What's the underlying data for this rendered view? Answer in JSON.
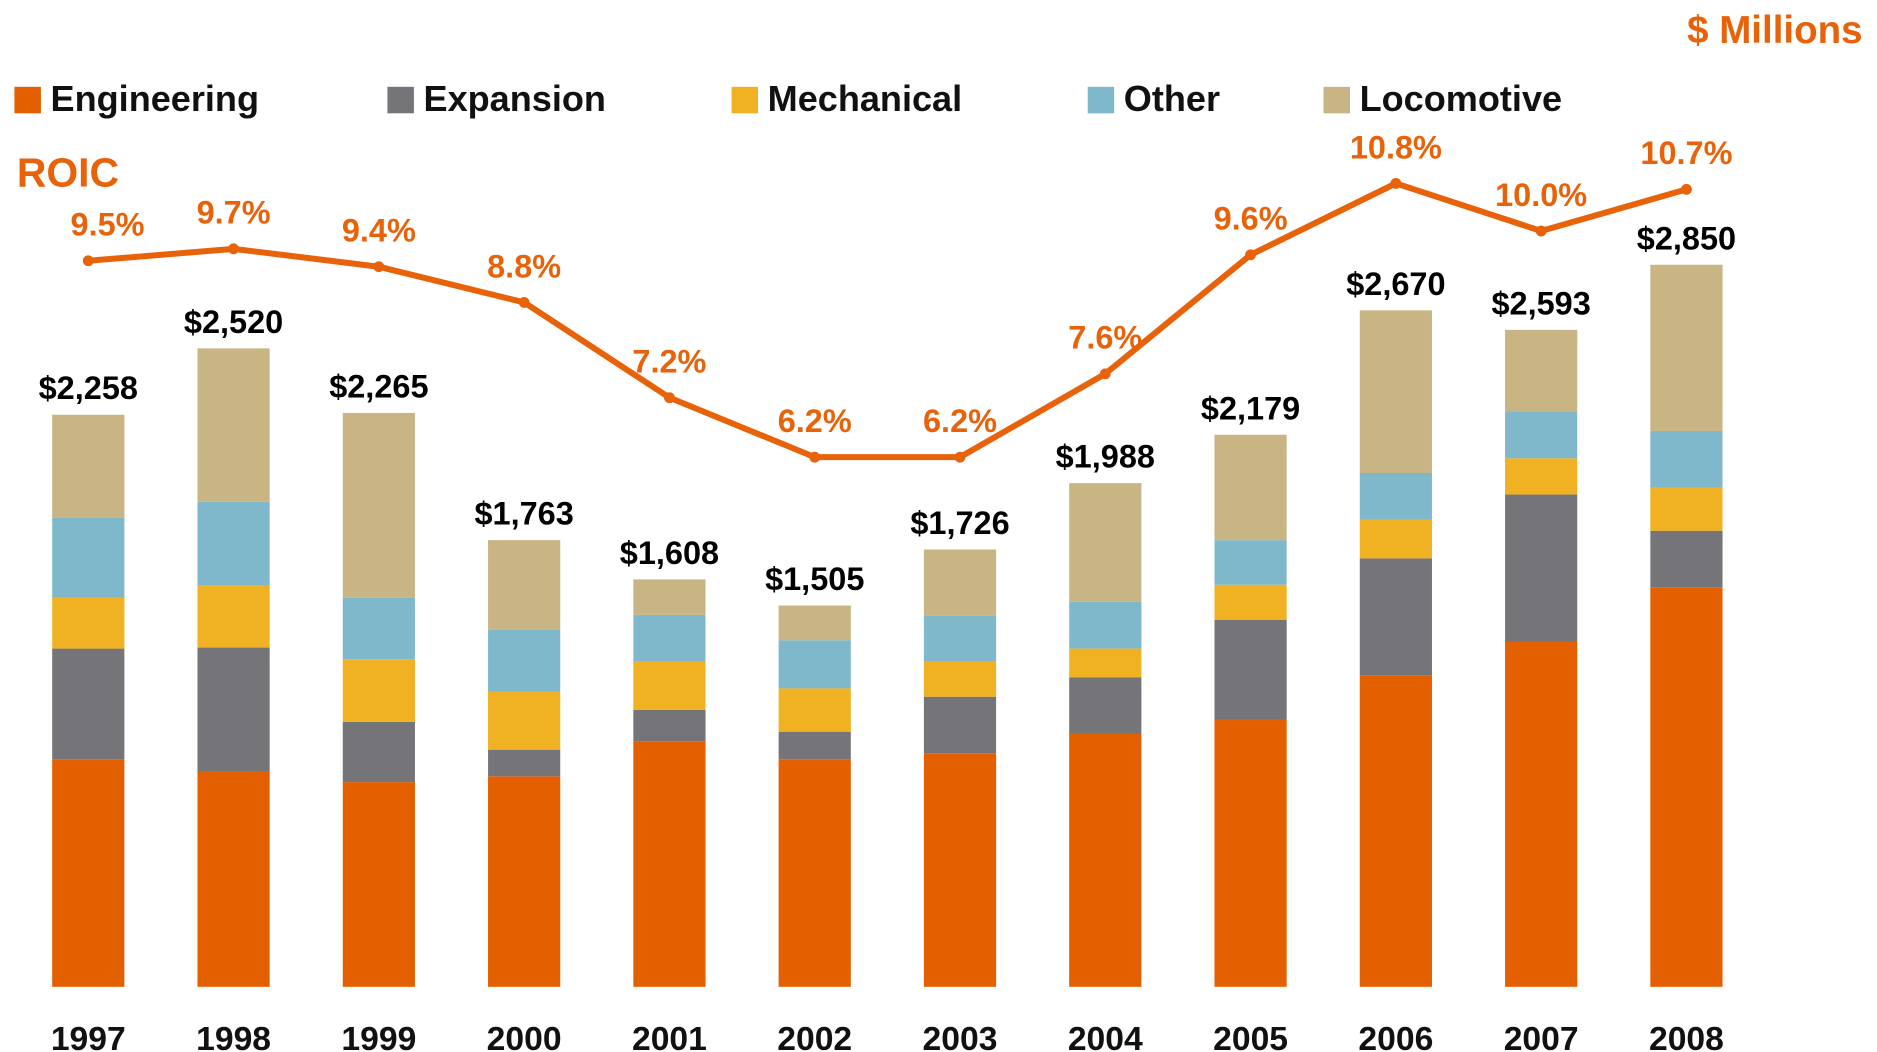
{
  "chart_data": {
    "type": "stacked-bar-line",
    "unit_label": "$ Millions",
    "categories": [
      "1997",
      "1998",
      "1999",
      "2000",
      "2001",
      "2002",
      "2003",
      "2004",
      "2005",
      "2006",
      "2007",
      "2008"
    ],
    "series": [
      {
        "name": "Engineering",
        "color": "#e35f00",
        "values": [
          898,
          850,
          808,
          831,
          969,
          898,
          922,
          998,
          1055,
          1230,
          1363,
          1577
        ]
      },
      {
        "name": "Expansion",
        "color": "#757479",
        "values": [
          437,
          489,
          238,
          105,
          124,
          109,
          223,
          223,
          394,
          461,
          580,
          223
        ]
      },
      {
        "name": "Mechanical",
        "color": "#f0b122",
        "values": [
          200,
          247,
          247,
          228,
          190,
          171,
          138,
          114,
          138,
          152,
          143,
          171
        ]
      },
      {
        "name": "Other",
        "color": "#7fb8cb",
        "values": [
          318,
          328,
          242,
          247,
          185,
          190,
          181,
          185,
          176,
          185,
          185,
          223
        ]
      },
      {
        "name": "Locomotive",
        "color": "#c8b583",
        "values": [
          405,
          606,
          730,
          352,
          140,
          137,
          262,
          468,
          416,
          642,
          322,
          656
        ]
      }
    ],
    "totals": [
      2258,
      2520,
      2265,
      1763,
      1608,
      1505,
      1726,
      1988,
      2179,
      2670,
      2593,
      2850
    ],
    "total_labels": [
      "$2,258",
      "$2,520",
      "$2,265",
      "$1,763",
      "$1,608",
      "$1,505",
      "$1,726",
      "$1,988",
      "$2,179",
      "$2,670",
      "$2,593",
      "$2,850"
    ],
    "line_series": {
      "name": "ROIC",
      "color": "#e8620a",
      "axis": "y2",
      "values": [
        9.5,
        9.7,
        9.4,
        8.8,
        7.2,
        6.2,
        6.2,
        7.6,
        9.6,
        10.8,
        10.0,
        10.7
      ],
      "value_labels": [
        "9.5%",
        "9.7%",
        "9.4%",
        "8.8%",
        "7.2%",
        "6.2%",
        "6.2%",
        "7.6%",
        "9.6%",
        "10.8%",
        "10.0%",
        "10.7%"
      ]
    },
    "ylim": [
      0,
      3500
    ],
    "y2lim": [
      -2.7,
      12.2
    ],
    "legend": "top-left"
  }
}
